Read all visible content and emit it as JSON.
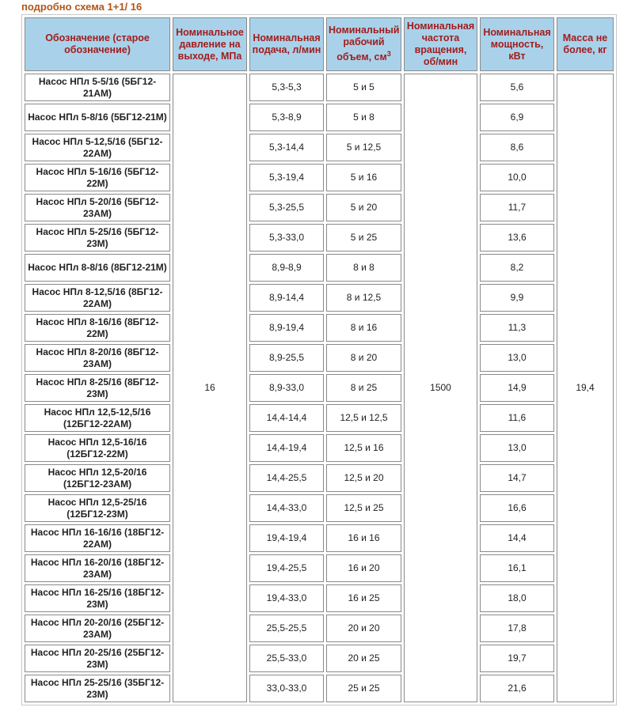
{
  "caption": "подробно схема 1+1/ 16",
  "table": {
    "headers": [
      "Обозначение (старое обозначение)",
      "Номинальное давление на выходе, МПа",
      "Номинальная подача, л/мин",
      {
        "text": "Номинальный рабочий объем, см",
        "sup": "3"
      },
      "Номинальная частота вращения, об/мин",
      "Номинальная мощность, кВт",
      "Масса не более, кг"
    ],
    "pressure": "16",
    "rpm": "1500",
    "mass": "19,4",
    "rows": [
      [
        "Насос НПл 5-5/16 (5БГ12-21АМ)",
        "5,3-5,3",
        "5 и 5",
        "5,6"
      ],
      [
        "Насос НПл 5-8/16 (5БГ12-21М)",
        "5,3-8,9",
        "5 и 8",
        "6,9"
      ],
      [
        "Насос НПл 5-12,5/16 (5БГ12-22АМ)",
        "5,3-14,4",
        "5 и 12,5",
        "8,6"
      ],
      [
        "Насос НПл 5-16/16 (5БГ12-22М)",
        "5,3-19,4",
        "5 и 16",
        "10,0"
      ],
      [
        "Насос НПл 5-20/16 (5БГ12-23АМ)",
        "5,3-25,5",
        "5 и 20",
        "11,7"
      ],
      [
        "Насос НПл 5-25/16 (5БГ12-23М)",
        "5,3-33,0",
        "5 и 25",
        "13,6"
      ],
      [
        "Насос НПл 8-8/16 (8БГ12-21М)",
        "8,9-8,9",
        "8 и 8",
        "8,2"
      ],
      [
        "Насос НПл 8-12,5/16 (8БГ12-22АМ)",
        "8,9-14,4",
        "8 и 12,5",
        "9,9"
      ],
      [
        "Насос НПл 8-16/16 (8БГ12-22М)",
        "8,9-19,4",
        "8 и 16",
        "11,3"
      ],
      [
        "Насос НПл 8-20/16 (8БГ12-23АМ)",
        "8,9-25,5",
        "8 и 20",
        "13,0"
      ],
      [
        "Насос НПл 8-25/16 (8БГ12-23М)",
        "8,9-33,0",
        "8 и 25",
        "14,9"
      ],
      [
        "Насос НПл 12,5-12,5/16 (12БГ12-22АМ)",
        "14,4-14,4",
        "12,5 и 12,5",
        "11,6"
      ],
      [
        "Насос НПл 12,5-16/16 (12БГ12-22М)",
        "14,4-19,4",
        "12,5 и 16",
        "13,0"
      ],
      [
        "Насос НПл 12,5-20/16 (12БГ12-23АМ)",
        "14,4-25,5",
        "12,5 и 20",
        "14,7"
      ],
      [
        "Насос НПл 12,5-25/16 (12БГ12-23М)",
        "14,4-33,0",
        "12,5 и 25",
        "16,6"
      ],
      [
        "Насос НПл 16-16/16 (18БГ12-22АМ)",
        "19,4-19,4",
        "16 и 16",
        "14,4"
      ],
      [
        "Насос НПл 16-20/16 (18БГ12-23АМ)",
        "19,4-25,5",
        "16 и 20",
        "16,1"
      ],
      [
        "Насос НПл 16-25/16 (18БГ12-23М)",
        "19,4-33,0",
        "16 и 25",
        "18,0"
      ],
      [
        "Насос НПл 20-20/16 (25БГ12-23АМ)",
        "25,5-25,5",
        "20 и 20",
        "17,8"
      ],
      [
        "Насос НПл 20-25/16 (25БГ12-23М)",
        "25,5-33,0",
        "20 и 25",
        "19,7"
      ],
      [
        "Насос НПл 25-25/16 (35БГ12-23М)",
        "33,0-33,0",
        "25 и 25",
        "21,6"
      ]
    ]
  }
}
